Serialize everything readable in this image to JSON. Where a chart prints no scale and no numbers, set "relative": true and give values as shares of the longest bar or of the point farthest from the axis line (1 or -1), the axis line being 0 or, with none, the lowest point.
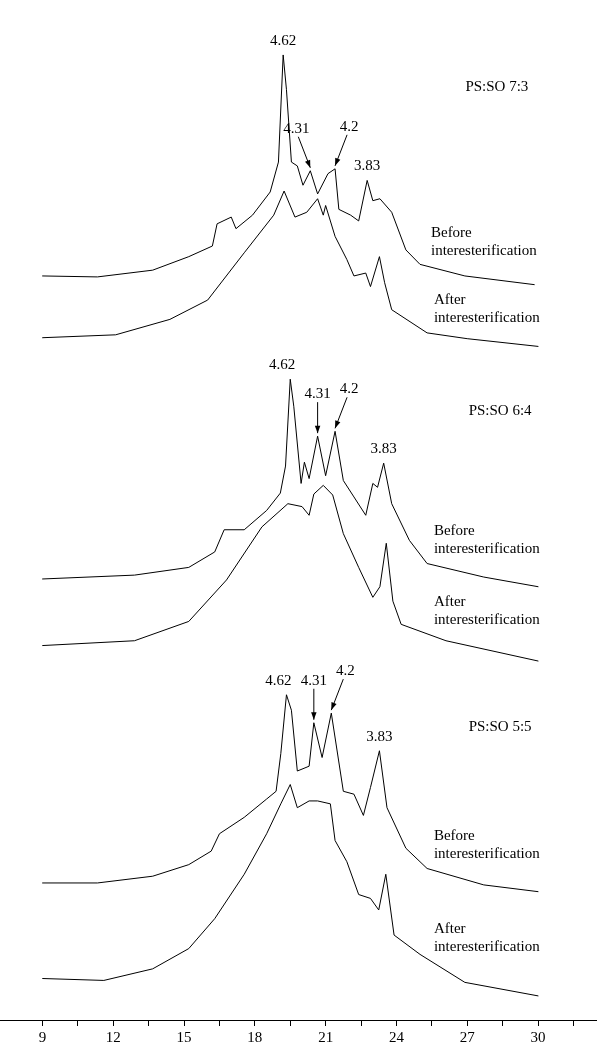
{
  "chart_data": {
    "type": "line",
    "relative": true,
    "legend": false,
    "grid": false,
    "marker": "none",
    "line_style": "solid",
    "tick_labels": "x",
    "xlim": [
      7.2,
      32.5
    ],
    "xticks": [
      9,
      {
        "value": 10.5,
        "label": null
      },
      12,
      {
        "value": 13.5,
        "label": null
      },
      15,
      {
        "value": 16.5,
        "label": null
      },
      18,
      {
        "value": 19.5,
        "label": null
      },
      21,
      {
        "value": 22.5,
        "label": null
      },
      24,
      {
        "value": 25.5,
        "label": null
      },
      27,
      {
        "value": 28.5,
        "label": null
      },
      30,
      {
        "value": 31.5,
        "label": null
      }
    ],
    "series": [
      {
        "name": "Before interesterification",
        "color": "#000000",
        "x": [
          9,
          11.33,
          13.67,
          15.2,
          16.2,
          16.4,
          17.0,
          17.2,
          17.9,
          18.65,
          19.0,
          19.2,
          19.34,
          19.55,
          19.8,
          20.04,
          20.35,
          20.66,
          21.1,
          21.4,
          21.56,
          22.06,
          22.4,
          22.76,
          23.0,
          23.3,
          23.8,
          24.4,
          25.0,
          26.9,
          29.84
        ],
        "values": [
          0.771,
          0.77,
          0.777,
          0.791,
          0.802,
          0.825,
          0.832,
          0.82,
          0.834,
          0.858,
          0.889,
          1.0,
          0.964,
          0.889,
          0.885,
          0.865,
          0.88,
          0.856,
          0.877,
          0.882,
          0.84,
          0.834,
          0.828,
          0.87,
          0.849,
          0.851,
          0.837,
          0.798,
          0.783,
          0.771,
          0.762
        ]
      },
      {
        "name": "After interesterification",
        "color": "#000000",
        "x": [
          9,
          12.1,
          14.4,
          16.0,
          17.55,
          18.8,
          19.24,
          19.7,
          20.2,
          20.66,
          20.9,
          21.0,
          21.4,
          21.9,
          22.2,
          22.7,
          22.9,
          23.28,
          23.5,
          23.8,
          25.3,
          27.0,
          30.0
        ],
        "values": [
          0.707,
          0.71,
          0.726,
          0.746,
          0.795,
          0.834,
          0.859,
          0.832,
          0.837,
          0.851,
          0.834,
          0.844,
          0.812,
          0.788,
          0.771,
          0.774,
          0.76,
          0.791,
          0.764,
          0.736,
          0.712,
          0.706,
          0.698
        ]
      },
      {
        "name": "Before interesterification",
        "color": "#000000",
        "x": [
          9,
          12.9,
          15.2,
          16.3,
          16.7,
          17.55,
          18.5,
          19.08,
          19.3,
          19.5,
          19.65,
          19.96,
          20.1,
          20.3,
          20.66,
          21.0,
          21.4,
          21.75,
          22.2,
          22.7,
          23.0,
          23.2,
          23.46,
          23.8,
          24.55,
          25.3,
          27.7,
          30.0
        ],
        "values": [
          0.457,
          0.461,
          0.469,
          0.485,
          0.508,
          0.508,
          0.528,
          0.546,
          0.574,
          0.664,
          0.636,
          0.556,
          0.578,
          0.561,
          0.605,
          0.564,
          0.61,
          0.559,
          0.542,
          0.523,
          0.556,
          0.552,
          0.577,
          0.535,
          0.497,
          0.473,
          0.459,
          0.449
        ]
      },
      {
        "name": "After interesterification",
        "color": "#000000",
        "x": [
          9,
          12.9,
          15.2,
          16.8,
          18.3,
          19.4,
          20.0,
          20.3,
          20.5,
          20.9,
          21.3,
          21.75,
          22.4,
          23.0,
          23.3,
          23.57,
          23.85,
          24.2,
          26.1,
          30.0
        ],
        "values": [
          0.388,
          0.393,
          0.413,
          0.456,
          0.511,
          0.535,
          0.532,
          0.523,
          0.545,
          0.554,
          0.544,
          0.504,
          0.469,
          0.438,
          0.449,
          0.494,
          0.434,
          0.41,
          0.393,
          0.372
        ]
      },
      {
        "name": "Before interesterification",
        "color": "#000000",
        "x": [
          9,
          11.33,
          13.67,
          15.2,
          16.15,
          16.5,
          17.55,
          18.5,
          18.9,
          19.1,
          19.34,
          19.55,
          19.8,
          20.3,
          20.5,
          20.85,
          21.24,
          21.75,
          22.2,
          22.6,
          22.9,
          23.28,
          23.6,
          24.4,
          25.3,
          27.7,
          30.0
        ],
        "values": [
          0.142,
          0.142,
          0.149,
          0.161,
          0.175,
          0.193,
          0.21,
          0.229,
          0.237,
          0.276,
          0.337,
          0.321,
          0.258,
          0.263,
          0.308,
          0.272,
          0.318,
          0.237,
          0.234,
          0.212,
          0.241,
          0.279,
          0.22,
          0.178,
          0.157,
          0.14,
          0.133
        ]
      },
      {
        "name": "After interesterification",
        "color": "#000000",
        "x": [
          9,
          11.6,
          13.67,
          15.2,
          16.3,
          17.55,
          18.5,
          19.1,
          19.5,
          19.8,
          20.3,
          20.66,
          21.2,
          21.4,
          21.9,
          22.4,
          22.9,
          23.25,
          23.55,
          23.9,
          25.0,
          26.9,
          30.0
        ],
        "values": [
          0.043,
          0.041,
          0.053,
          0.074,
          0.105,
          0.151,
          0.193,
          0.224,
          0.244,
          0.22,
          0.227,
          0.227,
          0.224,
          0.186,
          0.164,
          0.13,
          0.126,
          0.114,
          0.151,
          0.088,
          0.068,
          0.039,
          0.025
        ]
      }
    ],
    "annotations": [
      "PS:SO 7:3",
      "PS:SO 6:4",
      "PS:SO 5:5",
      {
        "text": "4.62",
        "x": 19.2,
        "y": 1.0
      },
      {
        "text": "4.31",
        "x": 20.35,
        "y": 0.88
      },
      {
        "text": "4.2",
        "x": 21.4,
        "y": 0.882
      },
      {
        "text": "3.83",
        "x": 22.76,
        "y": 0.87
      },
      {
        "text": "4.62",
        "x": 19.5,
        "y": 0.664
      },
      {
        "text": "4.31",
        "x": 20.66,
        "y": 0.605
      },
      {
        "text": "4.2",
        "x": 21.4,
        "y": 0.61
      },
      {
        "text": "3.83",
        "x": 23.46,
        "y": 0.577
      },
      {
        "text": "4.62",
        "x": 19.34,
        "y": 0.337
      },
      {
        "text": "4.31",
        "x": 20.5,
        "y": 0.308
      },
      {
        "text": "4.2",
        "x": 21.24,
        "y": 0.318
      },
      {
        "text": "3.83",
        "x": 23.28,
        "y": 0.279
      }
    ]
  }
}
